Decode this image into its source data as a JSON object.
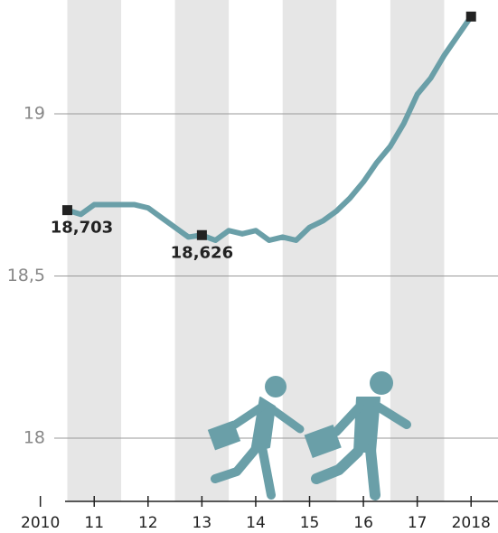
{
  "chart_data": {
    "type": "line",
    "x": [
      2010.5,
      2010.75,
      2011,
      2011.25,
      2011.5,
      2011.75,
      2012,
      2012.25,
      2012.5,
      2012.75,
      2013,
      2013.25,
      2013.5,
      2013.75,
      2014,
      2014.25,
      2014.5,
      2014.75,
      2015,
      2015.25,
      2015.5,
      2015.75,
      2016,
      2016.25,
      2016.5,
      2016.75,
      2017,
      2017.25,
      2017.5,
      2017.75,
      2018
    ],
    "series": [
      {
        "color": "#6a9fa8",
        "values": [
          18.703,
          18.69,
          18.72,
          18.72,
          18.72,
          18.72,
          18.71,
          18.68,
          18.65,
          18.62,
          18.626,
          18.61,
          18.64,
          18.63,
          18.64,
          18.61,
          18.62,
          18.61,
          18.65,
          18.67,
          18.7,
          18.74,
          18.79,
          18.85,
          18.9,
          18.97,
          19.06,
          19.11,
          19.18,
          19.24,
          19.3
        ],
        "value_labels": [
          "18,703",
          null,
          null,
          null,
          null,
          null,
          null,
          null,
          null,
          null,
          "18,626",
          null,
          null,
          null,
          null,
          null,
          null,
          null,
          null,
          null,
          null,
          null,
          null,
          null,
          null,
          null,
          null,
          null,
          null,
          null,
          null
        ],
        "marker_indices": [
          0,
          10,
          30
        ]
      }
    ],
    "xlim": [
      2009.25,
      2018.5
    ],
    "xticks": [
      {
        "value": 2010,
        "label": "2010"
      },
      {
        "value": 2011,
        "label": "11"
      },
      {
        "value": 2012,
        "label": "12"
      },
      {
        "value": 2013,
        "label": "13"
      },
      {
        "value": 2014,
        "label": "14"
      },
      {
        "value": 2015,
        "label": "15"
      },
      {
        "value": 2016,
        "label": "16"
      },
      {
        "value": 2017,
        "label": "17"
      },
      {
        "value": 2018,
        "label": "2018"
      }
    ],
    "ylim": [
      17.805,
      19.351
    ],
    "yticks": [
      18,
      {
        "value": 18.5,
        "label": "18,5"
      },
      19
    ],
    "grid": true
  }
}
